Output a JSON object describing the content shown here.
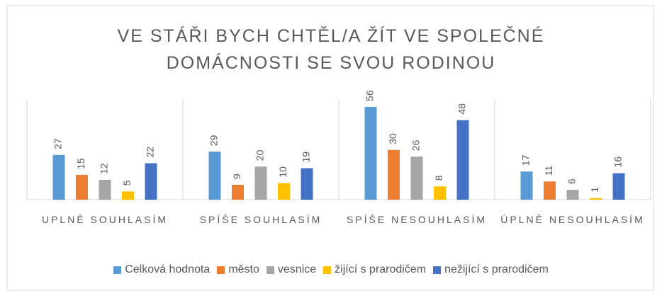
{
  "chart_data": {
    "type": "bar",
    "title": "VE STÁŘI BYCH CHTĚL/A ŽÍT VE SPOLEČNÉ DOMÁCNOSTI SE SVOU RODINOU",
    "categories": [
      "UPLNĚ SOUHLASÍM",
      "SPÍŠE SOUHLASÍM",
      "SPÍŠE NESOUHLASÍM",
      "ÚPLNĚ NESOUHLASÍM"
    ],
    "series": [
      {
        "name": "Celková hodnota",
        "color": "#5b9bd5",
        "values": [
          27,
          29,
          56,
          17
        ]
      },
      {
        "name": "město",
        "color": "#ed7d31",
        "values": [
          15,
          9,
          30,
          11
        ]
      },
      {
        "name": "vesnice",
        "color": "#a5a5a5",
        "values": [
          12,
          20,
          26,
          6
        ]
      },
      {
        "name": "žijící s prarodičem",
        "color": "#ffc000",
        "values": [
          5,
          10,
          8,
          1
        ]
      },
      {
        "name": "nežijící s prarodičem",
        "color": "#4472c4",
        "values": [
          22,
          19,
          48,
          16
        ]
      }
    ],
    "legend": "bottom"
  }
}
